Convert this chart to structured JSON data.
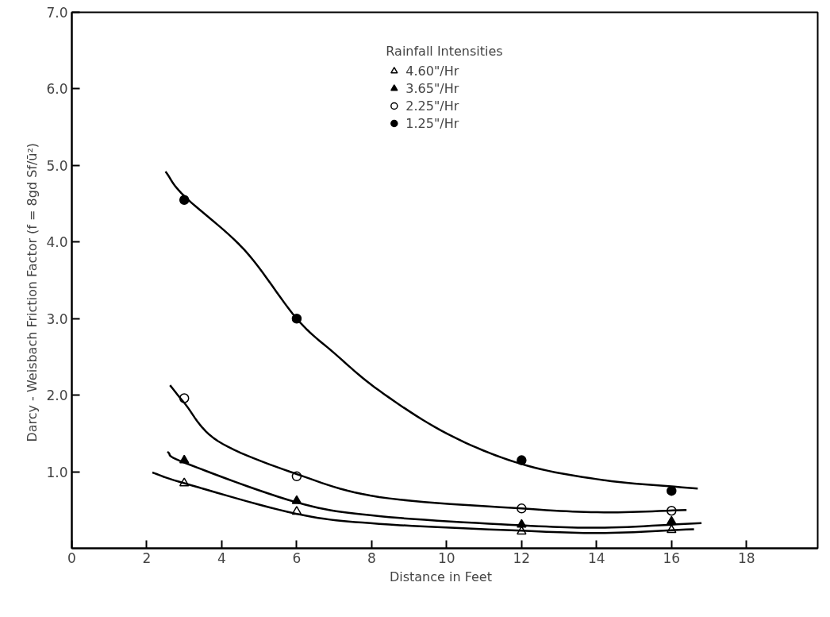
{
  "chart_data": {
    "type": "scatter",
    "xlabel": "Distance  in  Feet",
    "ylabel": "Darcy - Weisbach   Friction   Factor   (f = 8gd Sf/ū²)",
    "legend_title": "Rainfall Intensities",
    "legend": "top",
    "xlim": [
      0,
      19.9
    ],
    "ylim": [
      0,
      7
    ],
    "xticks": [
      0,
      2,
      4,
      6,
      8,
      10,
      12,
      14,
      16,
      18
    ],
    "yticks": [
      {
        "value": 1,
        "label": "1.0"
      },
      {
        "value": 2,
        "label": "2.0"
      },
      {
        "value": 3,
        "label": "3.0"
      },
      {
        "value": 4,
        "label": "4.0"
      },
      {
        "value": 5,
        "label": "5.0"
      },
      {
        "value": 6,
        "label": "6.0"
      },
      {
        "value": 7,
        "label": "7.0"
      }
    ],
    "grid": false,
    "series": [
      {
        "name": "4.60\"/Hr",
        "marker": "triangle",
        "color": "#ffffff",
        "x": [
          3,
          6,
          12,
          16
        ],
        "values": [
          0.85,
          0.48,
          0.22,
          0.24
        ]
      },
      {
        "name": "3.65\"/Hr",
        "marker": "triangle",
        "color": "#000000",
        "x": [
          3,
          6,
          12,
          16
        ],
        "values": [
          1.15,
          0.62,
          0.31,
          0.35
        ]
      },
      {
        "name": "2.25\"/Hr",
        "marker": "circle",
        "color": "#ffffff",
        "x": [
          3,
          6,
          12,
          16
        ],
        "values": [
          1.96,
          0.94,
          0.52,
          0.49
        ]
      },
      {
        "name": "1.25\"/Hr",
        "marker": "circle",
        "color": "#000000",
        "x": [
          3,
          6,
          12,
          16
        ],
        "values": [
          4.55,
          3.0,
          1.15,
          0.75
        ]
      },
      {
        "type": "line",
        "marker": "none",
        "color": "#000000",
        "x": [
          2.5,
          3,
          4.6,
          6,
          7,
          8.2,
          10,
          12,
          14.2,
          16.7
        ],
        "values": [
          4.92,
          4.6,
          3.9,
          3.0,
          2.55,
          2.06,
          1.5,
          1.1,
          0.89,
          0.78
        ]
      },
      {
        "type": "line",
        "marker": "none",
        "color": "#000000",
        "x": [
          2.62,
          3,
          3.9,
          6,
          8.2,
          12,
          14.2,
          16.4
        ],
        "values": [
          2.13,
          1.9,
          1.4,
          0.97,
          0.67,
          0.52,
          0.47,
          0.5
        ]
      },
      {
        "type": "line",
        "marker": "none",
        "color": "#000000",
        "x": [
          2.55,
          3,
          6,
          8.2,
          12,
          14.2,
          16.8
        ],
        "values": [
          1.26,
          1.12,
          0.6,
          0.42,
          0.3,
          0.27,
          0.33
        ]
      },
      {
        "type": "line",
        "marker": "none",
        "color": "#000000",
        "x": [
          2.15,
          3,
          6,
          8.2,
          12,
          14.2,
          16.6
        ],
        "values": [
          0.99,
          0.85,
          0.45,
          0.32,
          0.23,
          0.2,
          0.25
        ]
      }
    ]
  }
}
